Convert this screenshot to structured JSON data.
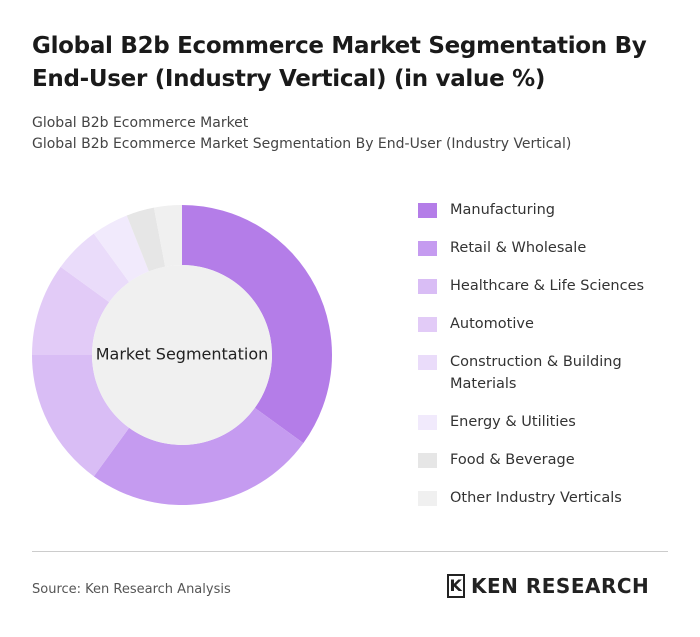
{
  "chart_data": {
    "type": "donut",
    "title": "Global B2b Ecommerce Market Segmentation By End-User (Industry Vertical) (in value %)",
    "subtitles": [
      "Global B2b Ecommerce Market",
      "Global B2b Ecommerce Market Segmentation By End-User (Industry Vertical)"
    ],
    "center_label": "Market Segmentation",
    "categories": [
      "Manufacturing",
      "Retail & Wholesale",
      "Healthcare & Life Sciences",
      "Automotive",
      "Construction & Building Materials",
      "Energy & Utilities",
      "Food & Beverage",
      "Other Industry Verticals"
    ],
    "values": [
      35,
      25,
      15,
      10,
      5,
      4,
      3,
      3
    ],
    "colors": [
      "#b47de8",
      "#c59bf0",
      "#d9bdf5",
      "#e2cbf7",
      "#eadcfa",
      "#f1eafc",
      "#e6e6e6",
      "#f0f0f0"
    ],
    "source": "Source: Ken Research Analysis",
    "logo": "KEN RESEARCH"
  }
}
